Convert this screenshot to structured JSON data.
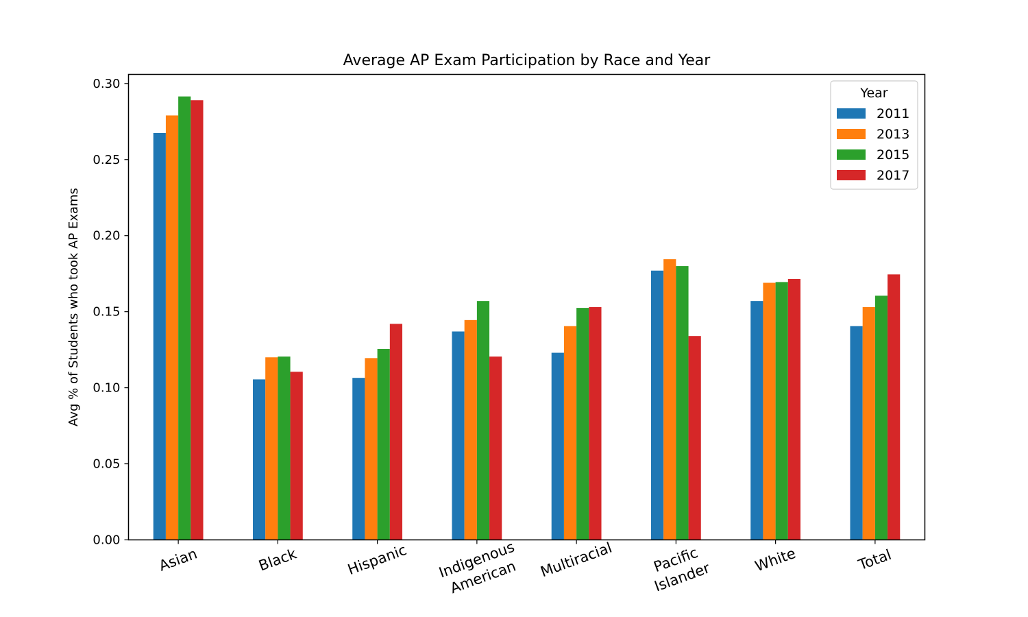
{
  "chart_data": {
    "type": "bar",
    "title": "Average AP Exam Participation by Race and Year",
    "xlabel": "",
    "ylabel": "Avg % of Students who took AP Exams",
    "ylim": [
      0,
      0.306
    ],
    "yticks": [
      "0.00",
      "0.05",
      "0.10",
      "0.15",
      "0.20",
      "0.25",
      "0.30"
    ],
    "categories": [
      "Asian",
      "Black",
      "Hispanic",
      "Indigenous American",
      "Multiracial",
      "Pacific Islander",
      "White",
      "Total"
    ],
    "category_lines": [
      [
        "Asian"
      ],
      [
        "Black"
      ],
      [
        "Hispanic"
      ],
      [
        "Indigenous",
        "American"
      ],
      [
        "Multiracial"
      ],
      [
        "Pacific",
        "Islander"
      ],
      [
        "White"
      ],
      [
        "Total"
      ]
    ],
    "legend": {
      "title": "Year",
      "position": "top-right"
    },
    "grid": false,
    "series": [
      {
        "name": "2011",
        "color": "#1f77b4",
        "values": [
          0.2675,
          0.1055,
          0.1065,
          0.137,
          0.123,
          0.177,
          0.157,
          0.1405
        ]
      },
      {
        "name": "2013",
        "color": "#ff7f0e",
        "values": [
          0.279,
          0.12,
          0.1195,
          0.1445,
          0.1405,
          0.1845,
          0.169,
          0.153
        ]
      },
      {
        "name": "2015",
        "color": "#2ca02c",
        "values": [
          0.2915,
          0.1205,
          0.1255,
          0.157,
          0.1525,
          0.18,
          0.1695,
          0.1605
        ]
      },
      {
        "name": "2017",
        "color": "#d62728",
        "values": [
          0.289,
          0.1105,
          0.142,
          0.1205,
          0.153,
          0.134,
          0.1715,
          0.1745
        ]
      }
    ]
  }
}
